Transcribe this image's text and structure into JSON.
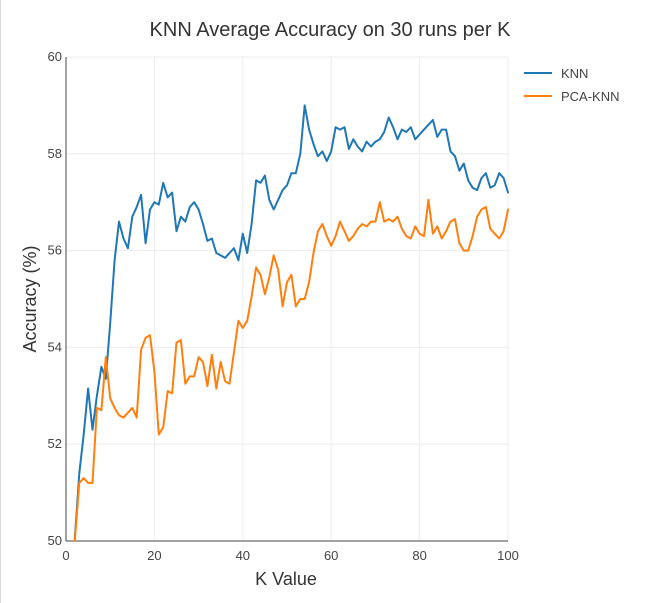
{
  "chart_data": {
    "type": "line",
    "title": "KNN Average Accuracy on 30 runs per K",
    "xlabel": "K Value",
    "ylabel": "Accuracy (%)",
    "xlim": [
      0,
      100
    ],
    "ylim": [
      50,
      60
    ],
    "x_ticks": [
      0,
      20,
      40,
      60,
      80,
      100
    ],
    "y_ticks": [
      50,
      52,
      54,
      56,
      58,
      60
    ],
    "grid": true,
    "legend_position": "top-right",
    "x": [
      2,
      3,
      4,
      5,
      6,
      7,
      8,
      9,
      10,
      11,
      12,
      13,
      14,
      15,
      16,
      17,
      18,
      19,
      20,
      21,
      22,
      23,
      24,
      25,
      26,
      27,
      28,
      29,
      30,
      31,
      32,
      33,
      34,
      35,
      36,
      37,
      38,
      39,
      40,
      41,
      42,
      43,
      44,
      45,
      46,
      47,
      48,
      49,
      50,
      51,
      52,
      53,
      54,
      55,
      56,
      57,
      58,
      59,
      60,
      61,
      62,
      63,
      64,
      65,
      66,
      67,
      68,
      69,
      70,
      71,
      72,
      73,
      74,
      75,
      76,
      77,
      78,
      79,
      80,
      81,
      82,
      83,
      84,
      85,
      86,
      87,
      88,
      89,
      90,
      91,
      92,
      93,
      94,
      95,
      96,
      97,
      98,
      99,
      100
    ],
    "series": [
      {
        "name": "KNN",
        "color": "#1f77b4",
        "values": [
          50.05,
          51.4,
          52.2,
          53.15,
          52.3,
          53.0,
          53.6,
          53.35,
          54.5,
          55.8,
          56.6,
          56.25,
          56.05,
          56.7,
          56.9,
          57.15,
          56.15,
          56.85,
          57.0,
          56.95,
          57.4,
          57.1,
          57.2,
          56.4,
          56.7,
          56.6,
          56.9,
          57.0,
          56.85,
          56.55,
          56.2,
          56.25,
          55.95,
          55.9,
          55.85,
          55.95,
          56.05,
          55.8,
          56.35,
          55.95,
          56.55,
          57.45,
          57.4,
          57.55,
          57.05,
          56.85,
          57.05,
          57.25,
          57.35,
          57.6,
          57.6,
          58.0,
          59.0,
          58.5,
          58.2,
          57.95,
          58.05,
          57.85,
          58.05,
          58.55,
          58.5,
          58.55,
          58.1,
          58.3,
          58.15,
          58.05,
          58.25,
          58.15,
          58.25,
          58.3,
          58.45,
          58.75,
          58.55,
          58.3,
          58.5,
          58.45,
          58.55,
          58.3,
          58.4,
          58.5,
          58.6,
          58.7,
          58.35,
          58.5,
          58.5,
          58.05,
          57.95,
          57.65,
          57.8,
          57.45,
          57.3,
          57.25,
          57.5,
          57.6,
          57.3,
          57.35,
          57.6,
          57.5,
          57.2
        ]
      },
      {
        "name": "PCA-KNN",
        "color": "#ff7f0e",
        "values": [
          50.0,
          51.2,
          51.3,
          51.2,
          51.2,
          52.75,
          52.7,
          53.8,
          52.95,
          52.75,
          52.6,
          52.55,
          52.65,
          52.75,
          52.55,
          53.95,
          54.2,
          54.25,
          53.5,
          52.2,
          52.35,
          53.1,
          53.05,
          54.1,
          54.15,
          53.25,
          53.4,
          53.4,
          53.8,
          53.7,
          53.2,
          53.85,
          53.15,
          53.7,
          53.3,
          53.25,
          53.9,
          54.55,
          54.4,
          54.55,
          55.05,
          55.65,
          55.5,
          55.1,
          55.45,
          55.9,
          55.6,
          54.85,
          55.35,
          55.5,
          54.85,
          55.0,
          55.0,
          55.35,
          55.95,
          56.4,
          56.55,
          56.3,
          56.1,
          56.3,
          56.6,
          56.4,
          56.2,
          56.3,
          56.45,
          56.55,
          56.5,
          56.6,
          56.6,
          57.0,
          56.6,
          56.65,
          56.6,
          56.7,
          56.45,
          56.3,
          56.25,
          56.5,
          56.35,
          56.3,
          57.05,
          56.35,
          56.5,
          56.25,
          56.4,
          56.6,
          56.65,
          56.15,
          56.0,
          56.0,
          56.3,
          56.7,
          56.85,
          56.9,
          56.45,
          56.35,
          56.25,
          56.4,
          56.85
        ]
      }
    ]
  }
}
